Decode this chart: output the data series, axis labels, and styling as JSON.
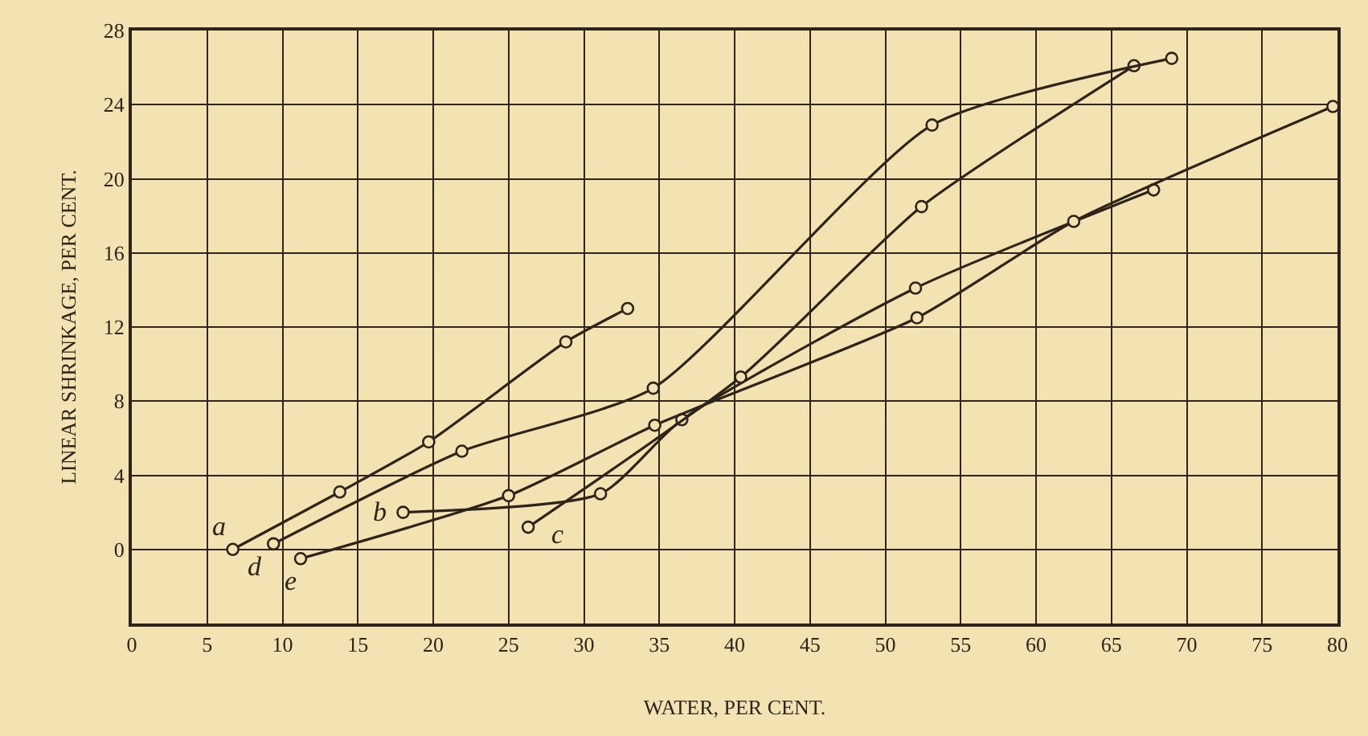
{
  "chart_data": {
    "type": "line",
    "xlabel": "WATER, PER CENT.",
    "ylabel": "LINEAR SHRINKAGE, PER CENT.",
    "xlim": [
      0,
      80
    ],
    "xticks": [
      0,
      5,
      10,
      15,
      20,
      25,
      30,
      35,
      40,
      45,
      50,
      55,
      60,
      65,
      70,
      75,
      80
    ],
    "ylim": [
      -4,
      28
    ],
    "yticks": [
      {
        "value": -4,
        "label": null
      },
      0,
      4,
      8,
      12,
      16,
      20,
      24,
      28
    ],
    "grid": true,
    "marker": "circle",
    "line_style": "solid",
    "legend": false,
    "series": [
      {
        "name": "a",
        "color": "#2e241a",
        "x": [
          6.7,
          13.8,
          19.7,
          28.8,
          32.9
        ],
        "values": [
          0,
          3.1,
          5.8,
          11.2,
          13.0
        ]
      },
      {
        "name": "b",
        "color": "#2e241a",
        "x": [
          18.0,
          31.1,
          36.5,
          52.0,
          67.8
        ],
        "values": [
          2.0,
          3.0,
          7.0,
          14.1,
          19.4
        ]
      },
      {
        "name": "c",
        "color": "#2e241a",
        "x": [
          26.3,
          40.4,
          52.4,
          66.5
        ],
        "values": [
          1.2,
          9.3,
          18.5,
          26.1
        ]
      },
      {
        "name": "d",
        "color": "#2e241a",
        "x": [
          9.4,
          21.9,
          34.6,
          53.1,
          69.0
        ],
        "values": [
          0.3,
          5.3,
          8.7,
          22.9,
          26.5
        ]
      },
      {
        "name": "e",
        "color": "#2e241a",
        "x": [
          11.2,
          25.0,
          34.7,
          52.1,
          62.5,
          79.7
        ],
        "values": [
          -0.5,
          2.9,
          6.7,
          12.5,
          17.7,
          23.9
        ]
      }
    ]
  }
}
